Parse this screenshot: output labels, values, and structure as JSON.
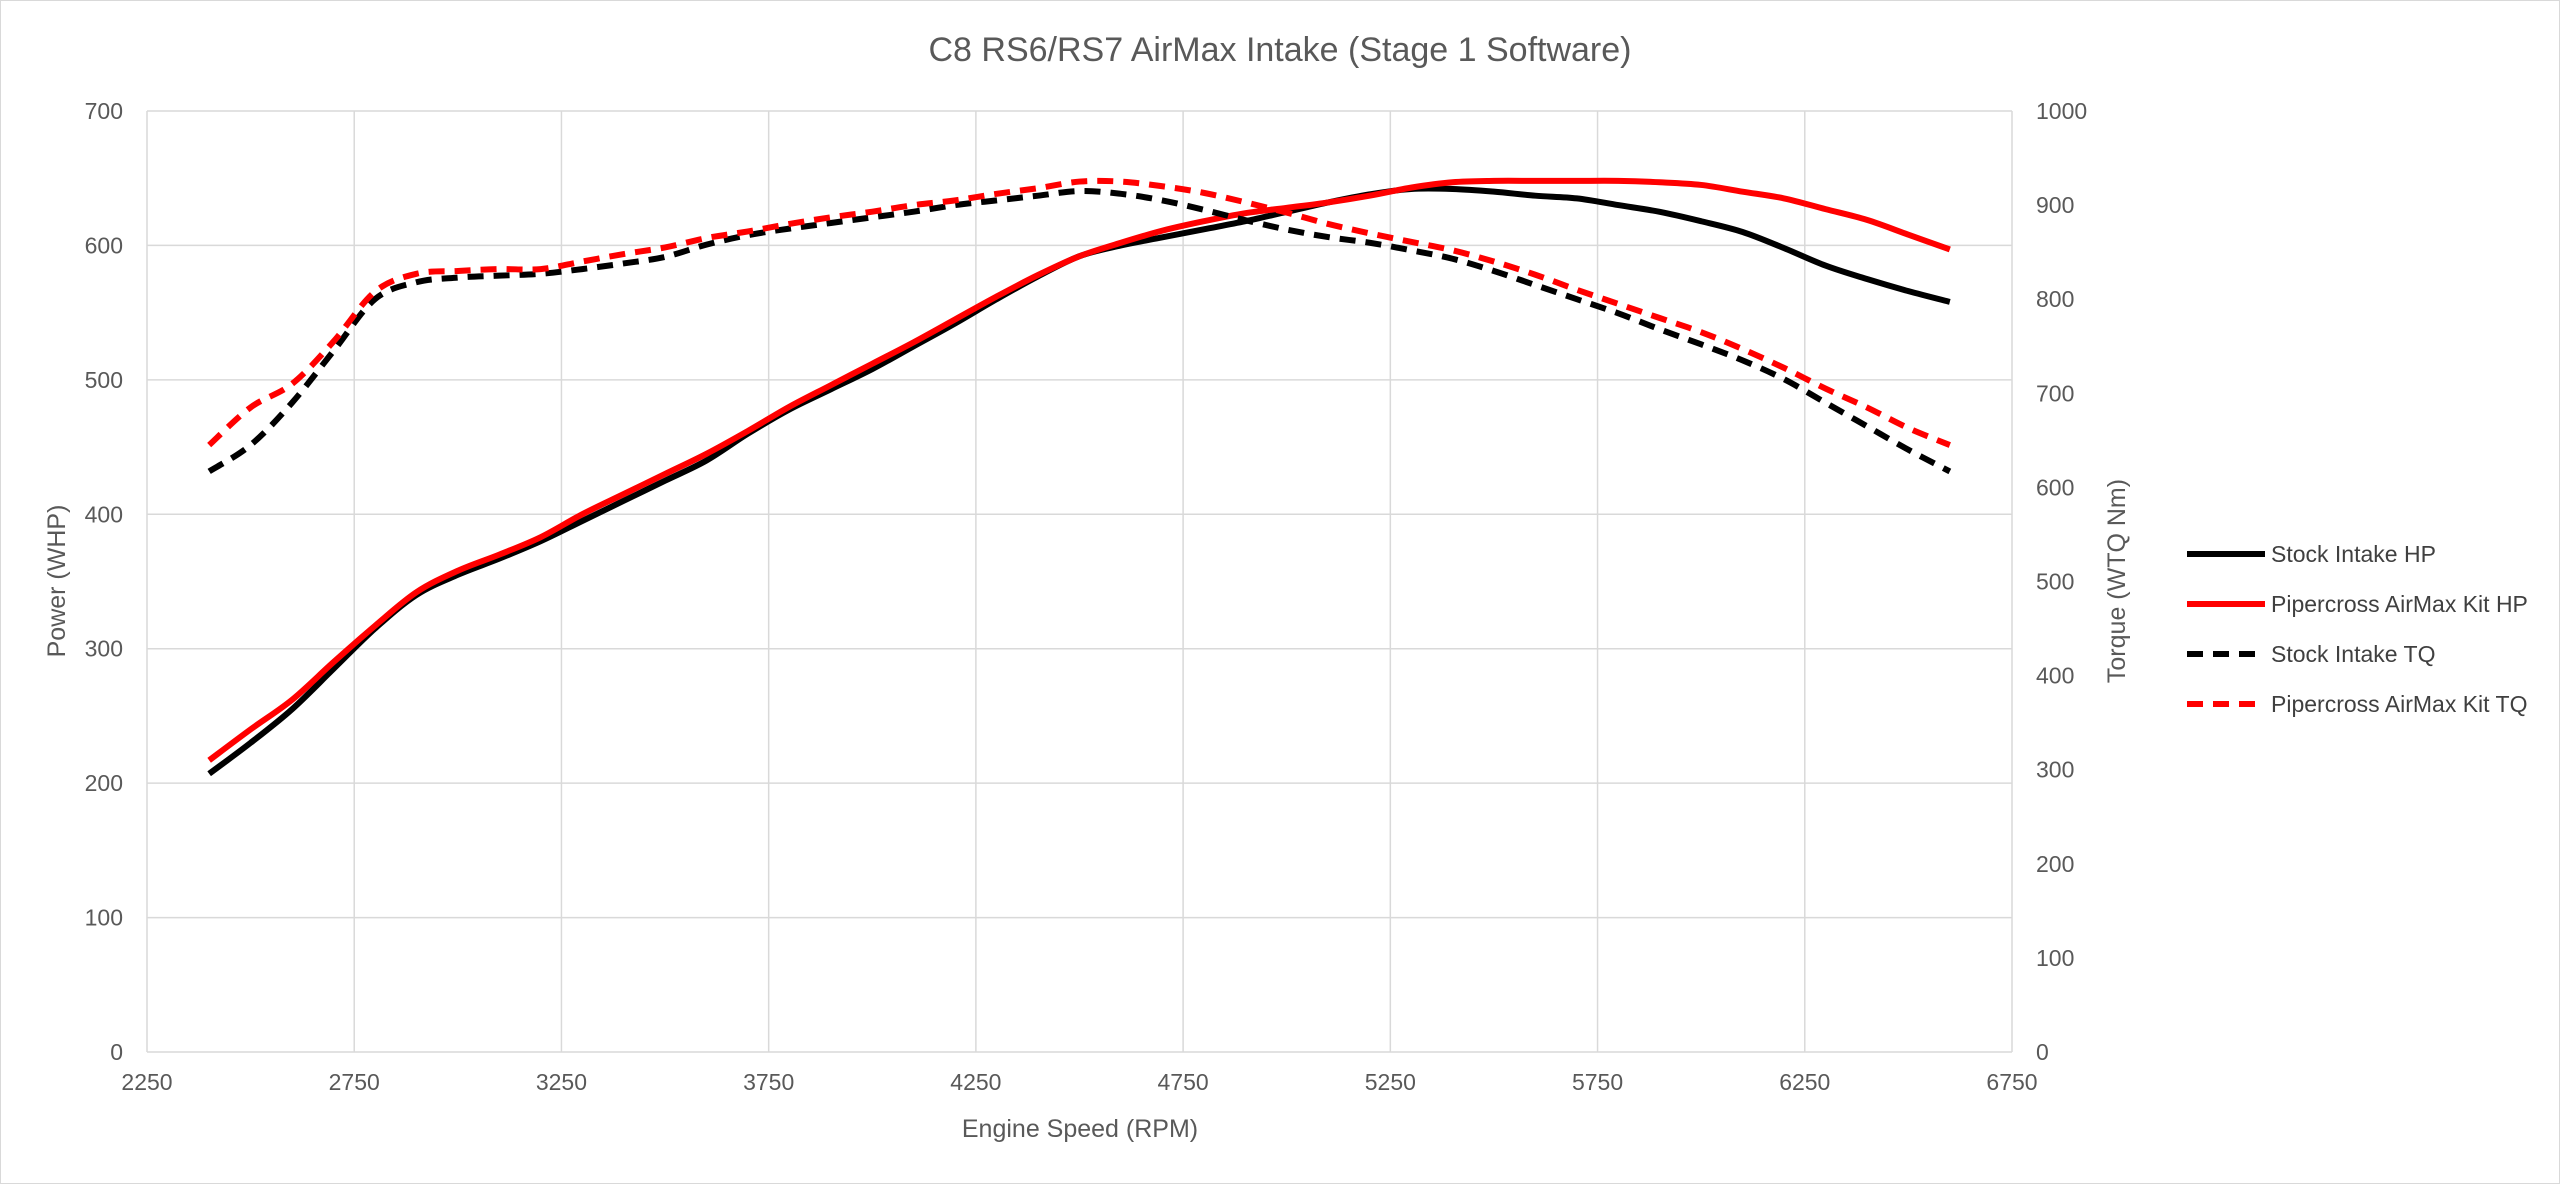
{
  "chart_data": {
    "type": "line",
    "title": "C8 RS6/RS7 AirMax Intake (Stage 1 Software)",
    "xlabel": "Engine Speed (RPM)",
    "ylabel": "Power (WHP)",
    "y2label": "Torque (WTQ Nm)",
    "xlim": [
      2250,
      6750
    ],
    "ylim": [
      0,
      700
    ],
    "y2lim": [
      0,
      1000
    ],
    "xticks": [
      2250,
      2750,
      3250,
      3750,
      4250,
      4750,
      5250,
      5750,
      6250,
      6750
    ],
    "yticks": [
      0,
      100,
      200,
      300,
      400,
      500,
      600,
      700
    ],
    "y2ticks": [
      0,
      100,
      200,
      300,
      400,
      500,
      600,
      700,
      800,
      900,
      1000
    ],
    "grid": true,
    "legend_position": "right",
    "series": [
      {
        "name": "Stock Intake HP",
        "axis": "left",
        "color": "#000000",
        "dash": "solid",
        "x": [
          2400,
          2500,
          2600,
          2700,
          2800,
          2900,
          3000,
          3100,
          3200,
          3300,
          3400,
          3500,
          3600,
          3700,
          3800,
          3900,
          4000,
          4100,
          4200,
          4300,
          4400,
          4500,
          4600,
          4700,
          4800,
          4900,
          5000,
          5100,
          5200,
          5300,
          5400,
          5500,
          5600,
          5700,
          5800,
          5900,
          6000,
          6100,
          6200,
          6300,
          6400,
          6500,
          6600
        ],
        "values": [
          207,
          230,
          255,
          285,
          315,
          340,
          355,
          367,
          380,
          395,
          410,
          425,
          440,
          460,
          478,
          493,
          508,
          525,
          542,
          560,
          577,
          592,
          600,
          606,
          612,
          618,
          625,
          632,
          638,
          642,
          642,
          640,
          637,
          635,
          630,
          625,
          618,
          610,
          598,
          585,
          575,
          566,
          558
        ]
      },
      {
        "name": "Pipercross AirMax Kit HP",
        "axis": "left",
        "color": "#ff0000",
        "dash": "solid",
        "x": [
          2400,
          2500,
          2600,
          2700,
          2800,
          2900,
          3000,
          3100,
          3200,
          3300,
          3400,
          3500,
          3600,
          3700,
          3800,
          3900,
          4000,
          4100,
          4200,
          4300,
          4400,
          4500,
          4600,
          4700,
          4800,
          4900,
          5000,
          5100,
          5200,
          5300,
          5400,
          5500,
          5600,
          5700,
          5800,
          5900,
          6000,
          6100,
          6200,
          6300,
          6400,
          6500,
          6600
        ],
        "values": [
          217,
          240,
          262,
          290,
          317,
          342,
          358,
          370,
          383,
          400,
          415,
          430,
          445,
          462,
          480,
          496,
          512,
          528,
          545,
          562,
          578,
          592,
          602,
          611,
          618,
          624,
          628,
          632,
          637,
          643,
          647,
          648,
          648,
          648,
          648,
          647,
          645,
          640,
          635,
          627,
          619,
          608,
          597
        ]
      },
      {
        "name": "Stock Intake TQ",
        "axis": "right",
        "color": "#000000",
        "dash": "dashed",
        "x": [
          2400,
          2500,
          2600,
          2700,
          2800,
          2900,
          3000,
          3100,
          3200,
          3300,
          3400,
          3500,
          3600,
          3700,
          3800,
          3900,
          4000,
          4100,
          4200,
          4300,
          4400,
          4500,
          4600,
          4700,
          4800,
          4900,
          5000,
          5100,
          5200,
          5300,
          5400,
          5500,
          5600,
          5700,
          5800,
          5900,
          6000,
          6100,
          6200,
          6300,
          6400,
          6500,
          6600
        ],
        "values": [
          617,
          645,
          690,
          745,
          800,
          818,
          823,
          825,
          827,
          832,
          838,
          845,
          858,
          868,
          875,
          881,
          887,
          893,
          900,
          905,
          910,
          915,
          912,
          905,
          895,
          884,
          874,
          866,
          860,
          852,
          843,
          830,
          815,
          800,
          785,
          768,
          752,
          735,
          715,
          690,
          665,
          640,
          617
        ]
      },
      {
        "name": "Pipercross AirMax Kit TQ",
        "axis": "right",
        "color": "#ff0000",
        "dash": "dashed",
        "x": [
          2400,
          2500,
          2600,
          2700,
          2800,
          2900,
          3000,
          3100,
          3200,
          3300,
          3400,
          3500,
          3600,
          3700,
          3800,
          3900,
          4000,
          4100,
          4200,
          4300,
          4400,
          4500,
          4600,
          4700,
          4800,
          4900,
          5000,
          5100,
          5200,
          5300,
          5400,
          5500,
          5600,
          5700,
          5800,
          5900,
          6000,
          6100,
          6200,
          6300,
          6400,
          6500,
          6600
        ],
        "values": [
          645,
          685,
          710,
          755,
          808,
          827,
          830,
          832,
          832,
          840,
          848,
          855,
          865,
          872,
          880,
          887,
          893,
          900,
          905,
          912,
          918,
          925,
          925,
          920,
          913,
          903,
          892,
          880,
          870,
          861,
          852,
          840,
          826,
          810,
          795,
          780,
          765,
          747,
          727,
          705,
          685,
          663,
          645
        ]
      }
    ]
  }
}
